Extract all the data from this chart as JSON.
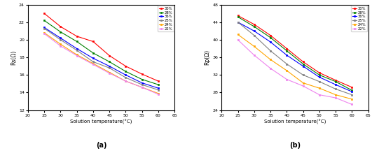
{
  "temperatures": [
    25,
    30,
    35,
    40,
    45,
    50,
    55,
    60
  ],
  "concentrations": [
    "30%",
    "28%",
    "36%",
    "25%",
    "24%",
    "22%"
  ],
  "colors": [
    "red",
    "green",
    "blue",
    "gray",
    "orange",
    "violet"
  ],
  "Rs_data": [
    [
      23.0,
      21.5,
      20.4,
      19.8,
      18.2,
      17.0,
      16.1,
      15.3
    ],
    [
      22.2,
      20.9,
      19.8,
      18.5,
      17.5,
      16.4,
      15.5,
      14.9
    ],
    [
      21.4,
      20.2,
      19.0,
      17.9,
      17.0,
      16.0,
      15.1,
      14.5
    ],
    [
      21.3,
      20.0,
      18.8,
      17.5,
      16.8,
      15.7,
      14.9,
      14.3
    ],
    [
      20.8,
      19.5,
      18.3,
      17.3,
      16.3,
      15.3,
      14.6,
      13.9
    ],
    [
      20.7,
      19.3,
      18.2,
      17.2,
      16.2,
      15.3,
      14.6,
      13.8
    ]
  ],
  "Rp_data": [
    [
      45.5,
      43.5,
      41.0,
      38.0,
      35.0,
      32.5,
      30.8,
      29.2
    ],
    [
      45.2,
      43.0,
      40.5,
      37.5,
      34.5,
      32.0,
      30.5,
      28.5
    ],
    [
      44.0,
      42.0,
      39.5,
      36.5,
      34.0,
      31.5,
      29.8,
      28.2
    ],
    [
      44.0,
      41.0,
      37.5,
      34.5,
      32.0,
      30.5,
      28.8,
      27.5
    ],
    [
      41.2,
      38.5,
      35.5,
      33.0,
      30.2,
      29.0,
      27.5,
      26.5
    ],
    [
      40.0,
      36.5,
      33.5,
      31.0,
      29.5,
      27.5,
      26.8,
      25.3
    ]
  ],
  "xlabel": "Solution temperature(°C)",
  "ylabel_a": "Rs(Ω)",
  "ylabel_b": "Rp(Ω)",
  "xlim": [
    20,
    65
  ],
  "ylim_a": [
    12,
    24
  ],
  "ylim_b": [
    24,
    48
  ],
  "xticks": [
    20,
    25,
    30,
    35,
    40,
    45,
    50,
    55,
    60,
    65
  ],
  "yticks_a": [
    12,
    14,
    16,
    18,
    20,
    22,
    24
  ],
  "yticks_b": [
    24,
    28,
    32,
    36,
    40,
    44,
    48
  ],
  "label_a": "(a)",
  "label_b": "(b)",
  "marker": "s",
  "markersize": 2.0,
  "linewidth": 0.8
}
